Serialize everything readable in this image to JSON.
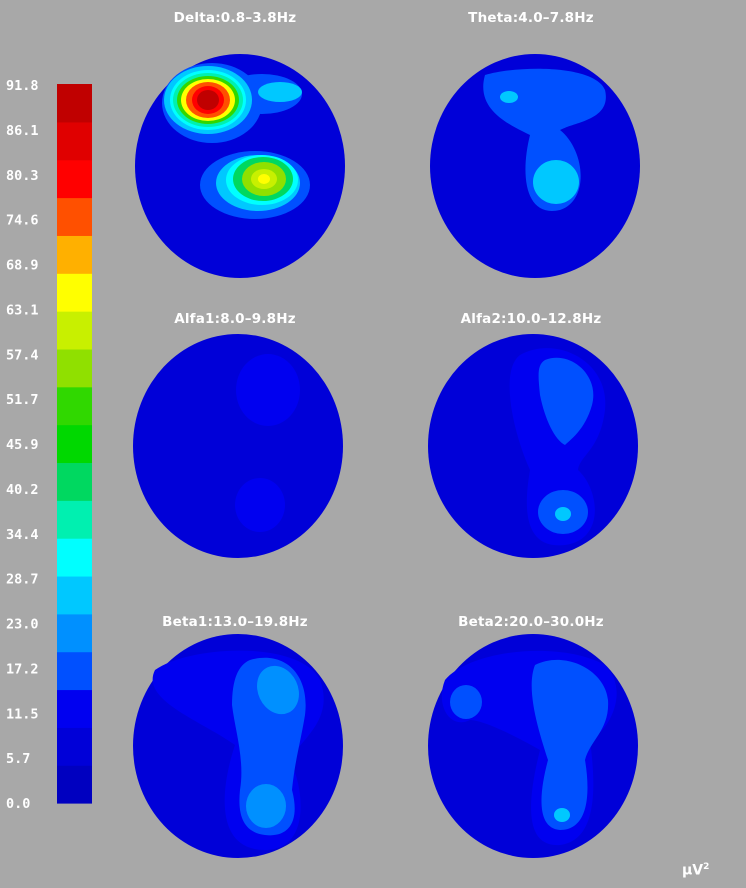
{
  "chart_data": {
    "type": "heatmap",
    "colorbar": {
      "tick_labels": [
        "91.8",
        "86.1",
        "80.3",
        "74.6",
        "68.9",
        "63.1",
        "57.4",
        "51.7",
        "45.9",
        "40.2",
        "34.4",
        "28.7",
        "23.0",
        "17.2",
        "11.5",
        "5.7",
        "0.0"
      ],
      "levels": [
        0.0,
        91.8
      ],
      "colors_bottom_to_top": [
        "#0000c0",
        "#0000d8",
        "#0000f0",
        "#0050ff",
        "#0090ff",
        "#00c8ff",
        "#00ffff",
        "#00f0b0",
        "#00d860",
        "#00d800",
        "#30d800",
        "#90e000",
        "#c8f000",
        "#ffff00",
        "#ffb000",
        "#ff5000",
        "#ff0000",
        "#e00000",
        "#c00000"
      ]
    },
    "unit": "μV",
    "unit_power": "2",
    "maps": [
      {
        "title": "Delta:0.8–3.8Hz",
        "peak": 91.8
      },
      {
        "title": "Theta:4.0–7.8Hz",
        "peak": 20
      },
      {
        "title": "Alfa1:8.0–9.8Hz",
        "peak": 10
      },
      {
        "title": "Alfa2:10.0–12.8Hz",
        "peak": 20
      },
      {
        "title": "Beta1:13.0–19.8Hz",
        "peak": 20
      },
      {
        "title": "Beta2:20.0–30.0Hz",
        "peak": 20
      }
    ]
  }
}
